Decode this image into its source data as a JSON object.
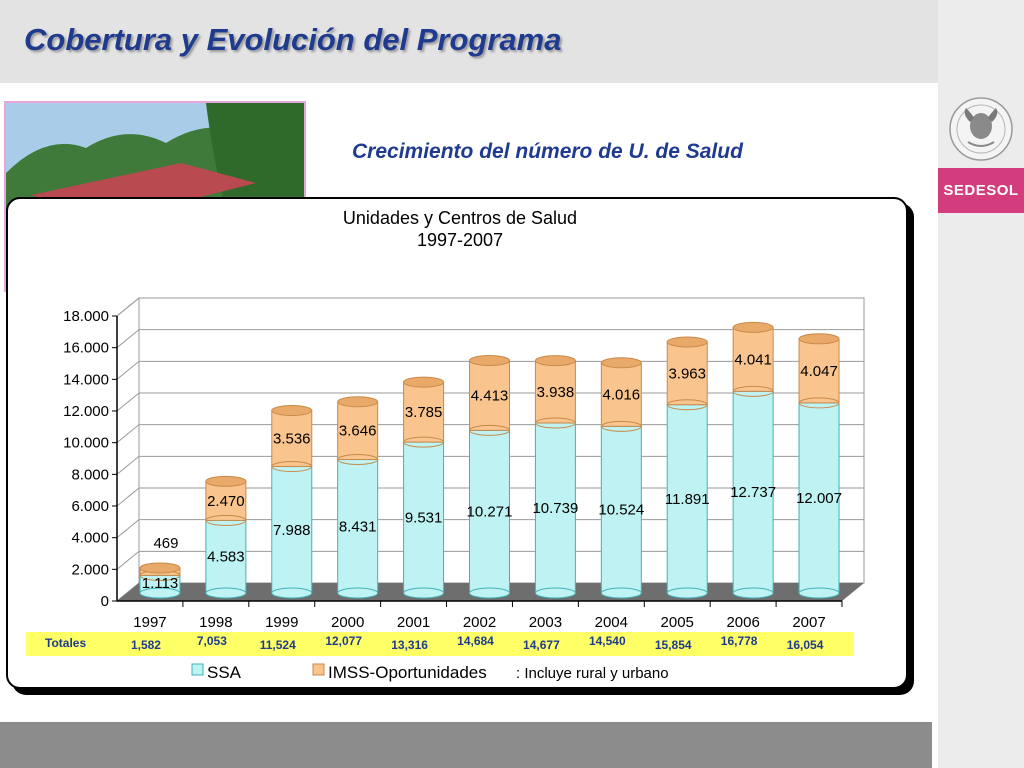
{
  "header": {
    "title": "Cobertura y Evolución del Programa"
  },
  "subtitle": "Crecimiento del número de U. de Salud",
  "brand": {
    "label": "SEDESOL",
    "color": "#d33c7d"
  },
  "seal": {
    "icon": "mexican-eagle-seal-icon"
  },
  "photo": {
    "icon": "health-center-photo"
  },
  "chart_data": {
    "type": "bar",
    "stacked": true,
    "title": "Unidades y Centros de Salud",
    "subtitle": "1997-2007",
    "categories": [
      "1997",
      "1998",
      "1999",
      "2000",
      "2001",
      "2002",
      "2003",
      "2004",
      "2005",
      "2006",
      "2007"
    ],
    "series": [
      {
        "name": "SSA",
        "color": "#bff2f2",
        "values": [
          1113,
          4583,
          7988,
          8431,
          9531,
          10271,
          10739,
          10524,
          11891,
          12737,
          12007
        ],
        "labels": [
          "1.113",
          "4.583",
          "7.988",
          "8.431",
          "9.531",
          "10.271",
          "10.739",
          "10.524",
          "11.891",
          "12.737",
          "12.007"
        ]
      },
      {
        "name": "IMSS-Oportunidades",
        "color": "#f9c48d",
        "values": [
          469,
          2470,
          3536,
          3646,
          3785,
          4413,
          3938,
          4016,
          3963,
          4041,
          4047
        ],
        "labels": [
          "469",
          "2.470",
          "3.536",
          "3.646",
          "3.785",
          "4.413",
          "3.938",
          "4.016",
          "3.963",
          "4.041",
          "4.047"
        ]
      }
    ],
    "ylim": [
      0,
      18000
    ],
    "yticks": [
      0,
      2000,
      4000,
      6000,
      8000,
      10000,
      12000,
      14000,
      16000,
      18000
    ],
    "ytick_labels": [
      "0",
      "2.000",
      "4.000",
      "6.000",
      "8.000",
      "10.000",
      "12.000",
      "14.000",
      "16.000",
      "18.000"
    ],
    "grid": true,
    "legend_position": "bottom",
    "legend_note": ": Incluye rural y urbano",
    "totals_label": "Totales",
    "totals": [
      "1,582",
      "7,053",
      "11,524",
      "12,077",
      "13,316",
      "14,684",
      "14,677",
      "14,540",
      "15,854",
      "16,778",
      "16,054"
    ]
  }
}
